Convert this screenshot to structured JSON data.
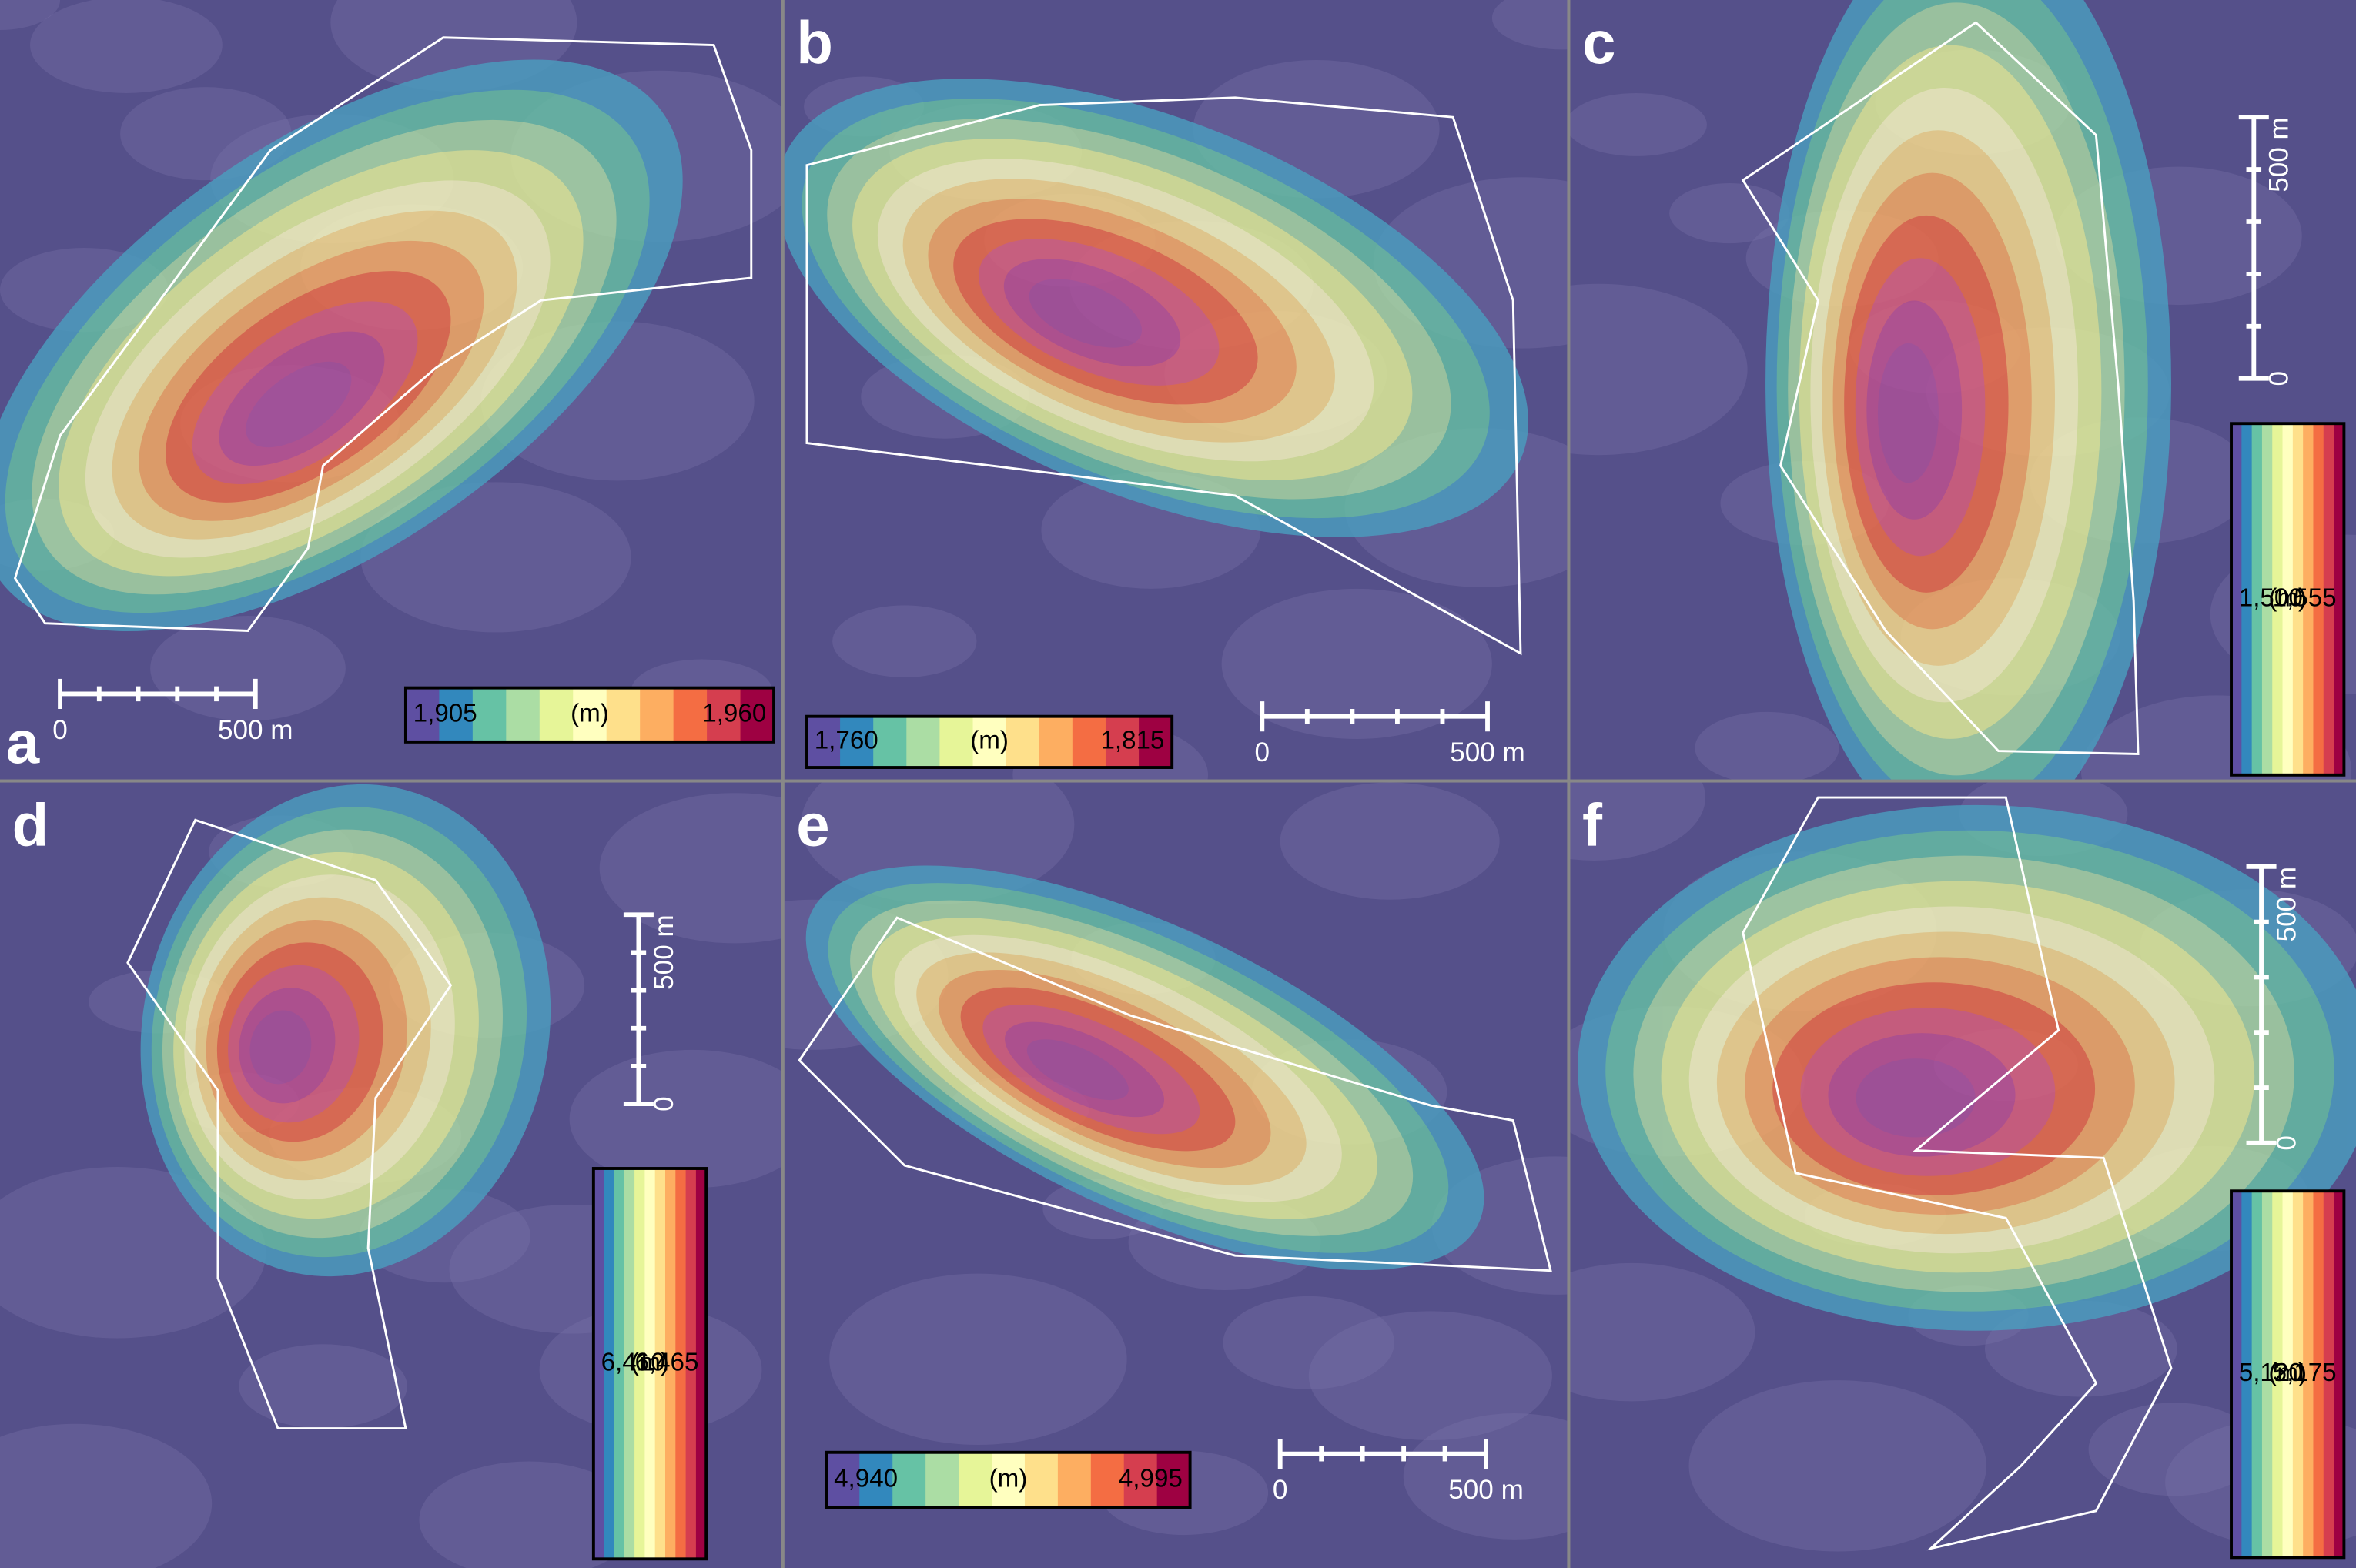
{
  "panels": [
    {
      "label": "a",
      "colorbar": {
        "min": "1,905",
        "max": "1,960",
        "unit": "(m)"
      },
      "scalebar": {
        "start": "0",
        "end": "500 m"
      }
    },
    {
      "label": "b",
      "colorbar": {
        "min": "1,760",
        "max": "1,815",
        "unit": "(m)"
      },
      "scalebar": {
        "start": "0",
        "end": "500 m"
      }
    },
    {
      "label": "c",
      "colorbar": {
        "min": "1,500",
        "max": "1,555",
        "unit": "(m)"
      },
      "scalebar": {
        "start": "0",
        "end": "500 m"
      }
    },
    {
      "label": "d",
      "colorbar": {
        "min": "6,410",
        "max": "6,465",
        "unit": "(m)"
      },
      "scalebar": {
        "start": "0",
        "end": "500 m"
      }
    },
    {
      "label": "e",
      "colorbar": {
        "min": "4,940",
        "max": "4,995",
        "unit": "(m)"
      },
      "scalebar": {
        "start": "0",
        "end": "500 m"
      }
    },
    {
      "label": "f",
      "colorbar": {
        "min": "5,120",
        "max": "5,175",
        "unit": "(m)"
      },
      "scalebar": {
        "start": "0",
        "end": "500 m"
      }
    }
  ]
}
